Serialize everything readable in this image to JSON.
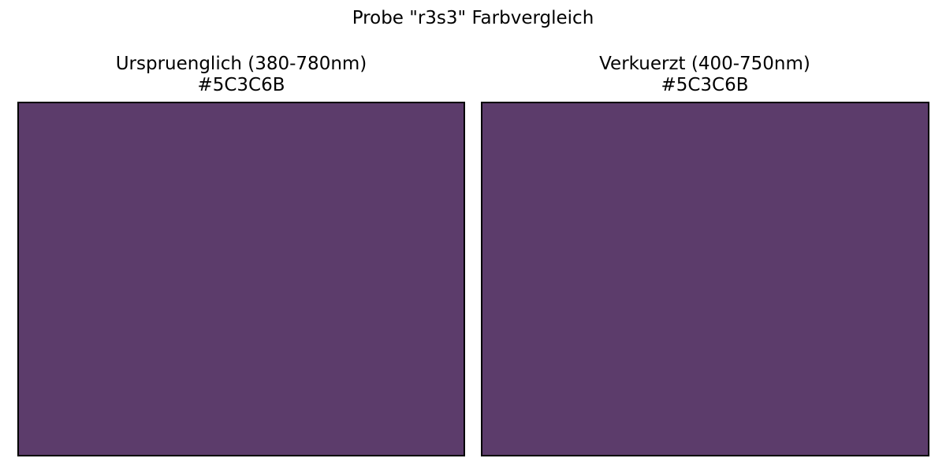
{
  "figure": {
    "title": "Probe \"r3s3\" Farbvergleich"
  },
  "panels": [
    {
      "title": "Urspruenglich (380-780nm)",
      "hex_label": "#5C3C6B",
      "color": "#5C3C6B"
    },
    {
      "title": "Verkuerzt (400-750nm)",
      "hex_label": "#5C3C6B",
      "color": "#5C3C6B"
    }
  ]
}
